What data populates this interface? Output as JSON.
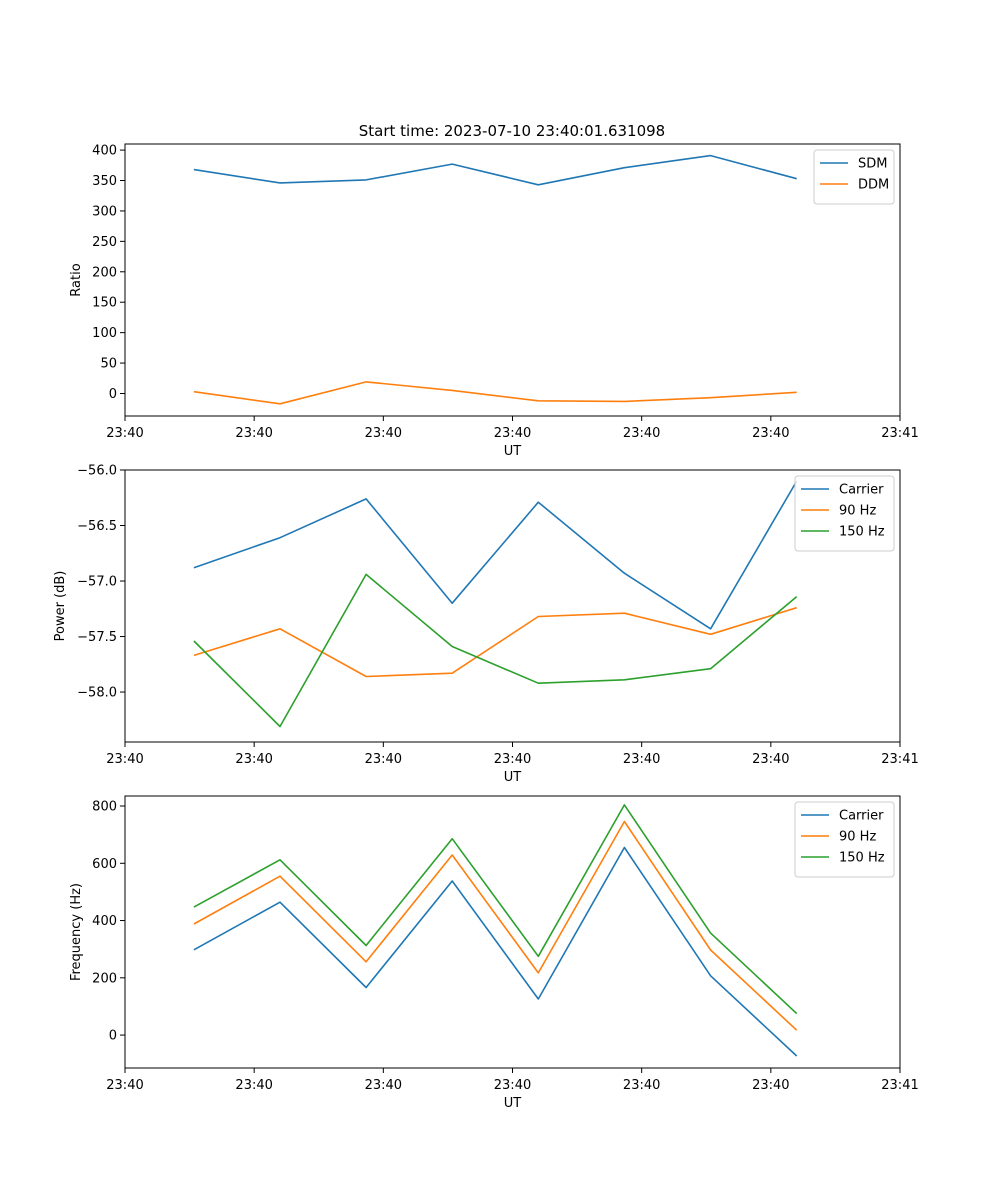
{
  "figure": {
    "title": "Start time: 2023-07-10 23:40:01.631098"
  },
  "colors": {
    "series1": "#1f77b4",
    "series2": "#ff7f0e",
    "series3": "#2ca02c",
    "axis": "#000000",
    "legend_border": "#cccccc"
  },
  "chart_data": [
    {
      "type": "line",
      "title": "Start time: 2023-07-10 23:40:01.631098",
      "xlabel": "UT",
      "ylabel": "Ratio",
      "x": [
        1,
        2,
        3,
        4,
        5,
        6,
        7,
        8
      ],
      "xlim": [
        0.2,
        9.2
      ],
      "xticks": [
        0.2,
        1.7,
        3.2,
        4.7,
        6.2,
        7.7,
        9.2
      ],
      "xtick_labels": [
        "23:40",
        "23:40",
        "23:40",
        "23:40",
        "23:40",
        "23:40",
        "23:41"
      ],
      "ylim": [
        -37,
        410
      ],
      "yticks": [
        0,
        50,
        100,
        150,
        200,
        250,
        300,
        350,
        400
      ],
      "ytick_labels": [
        "0",
        "50",
        "100",
        "150",
        "200",
        "250",
        "300",
        "350",
        "400"
      ],
      "legend_position": "top-right",
      "series": [
        {
          "name": "SDM",
          "values": [
            368,
            346,
            351,
            377,
            343,
            371,
            391,
            353
          ]
        },
        {
          "name": "DDM",
          "values": [
            3,
            -17,
            19,
            5,
            -12,
            -13,
            -7,
            2
          ]
        }
      ]
    },
    {
      "type": "line",
      "title": "",
      "xlabel": "UT",
      "ylabel": "Power (dB)",
      "x": [
        1,
        2,
        3,
        4,
        5,
        6,
        7,
        8
      ],
      "xlim": [
        0.2,
        9.2
      ],
      "xticks": [
        0.2,
        1.7,
        3.2,
        4.7,
        6.2,
        7.7,
        9.2
      ],
      "xtick_labels": [
        "23:40",
        "23:40",
        "23:40",
        "23:40",
        "23:40",
        "23:40",
        "23:41"
      ],
      "ylim": [
        -58.45,
        -56.0
      ],
      "yticks": [
        -58.0,
        -57.5,
        -57.0,
        -56.5,
        -56.0
      ],
      "ytick_labels": [
        "−58.0",
        "−57.5",
        "−57.0",
        "−56.5",
        "−56.0"
      ],
      "legend_position": "top-right",
      "series": [
        {
          "name": "Carrier",
          "values": [
            -56.88,
            -56.61,
            -56.26,
            -57.2,
            -56.29,
            -56.93,
            -57.43,
            -56.1
          ]
        },
        {
          "name": "90 Hz",
          "values": [
            -57.67,
            -57.43,
            -57.86,
            -57.83,
            -57.32,
            -57.29,
            -57.48,
            -57.24
          ]
        },
        {
          "name": "150 Hz",
          "values": [
            -57.54,
            -58.31,
            -56.94,
            -57.59,
            -57.92,
            -57.89,
            -57.79,
            -57.14
          ]
        }
      ]
    },
    {
      "type": "line",
      "title": "",
      "xlabel": "UT",
      "ylabel": "Frequency (Hz)",
      "x": [
        1,
        2,
        3,
        4,
        5,
        6,
        7,
        8
      ],
      "xlim": [
        0.2,
        9.2
      ],
      "xticks": [
        0.2,
        1.7,
        3.2,
        4.7,
        6.2,
        7.7,
        9.2
      ],
      "xtick_labels": [
        "23:40",
        "23:40",
        "23:40",
        "23:40",
        "23:40",
        "23:40",
        "23:41"
      ],
      "ylim": [
        -115,
        835
      ],
      "yticks": [
        0,
        200,
        400,
        600,
        800
      ],
      "ytick_labels": [
        "0",
        "200",
        "400",
        "600",
        "800"
      ],
      "legend_position": "top-right",
      "series": [
        {
          "name": "Carrier",
          "values": [
            298,
            464,
            166,
            538,
            126,
            655,
            207,
            -73
          ]
        },
        {
          "name": "90 Hz",
          "values": [
            388,
            555,
            256,
            629,
            217,
            746,
            297,
            17
          ]
        },
        {
          "name": "150 Hz",
          "values": [
            447,
            612,
            313,
            686,
            275,
            804,
            356,
            75
          ]
        }
      ]
    }
  ]
}
